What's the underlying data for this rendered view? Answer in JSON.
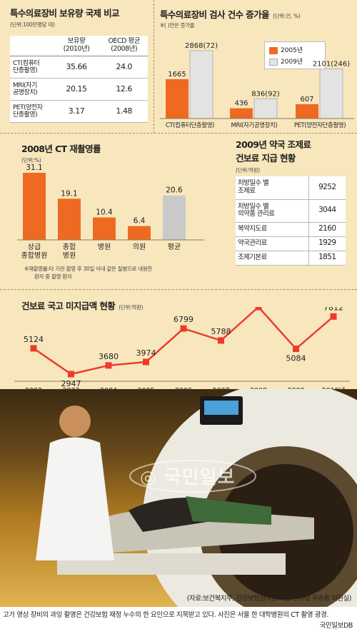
{
  "equipment_table": {
    "title": "특수의료장비 보유량 국제 비교",
    "unit": "(단위:100만명당 대)",
    "col_korea": [
      "보유량",
      "(2010년)"
    ],
    "col_oecd": [
      "OECD 평균",
      "(2008년)"
    ],
    "rows": [
      {
        "label": [
          "CT(컴퓨터",
          "단층촬영)"
        ],
        "korea": "35.66",
        "oecd": "24.0"
      },
      {
        "label": [
          "MRI(자기",
          "공명장치)"
        ],
        "korea": "20.15",
        "oecd": "12.6"
      },
      {
        "label": [
          "PET(양전자",
          "단층촬영)"
        ],
        "korea": "3.17",
        "oecd": "1.48"
      }
    ]
  },
  "exam_chart": {
    "title": "특수의료장비 검사 건수 증가율",
    "unit": "(단위:건, %)",
    "note": "※( )안은 증가율",
    "legend": [
      "2005년",
      "2009년"
    ],
    "colors": {
      "y2005": "#ee6a22",
      "y2009": "#e3e3e3"
    },
    "categories": [
      "CT(컴퓨터단층촬영)",
      "MRI(자기공명장치)",
      "PET(양전자단층촬영)"
    ],
    "series": [
      {
        "name": "2005년",
        "values": [
          1665,
          436,
          607
        ],
        "labels": [
          "1665",
          "436",
          "607"
        ]
      },
      {
        "name": "2009년",
        "values": [
          2868,
          836,
          2101
        ],
        "labels": [
          "2868(72)",
          "836(92)",
          "2101(246)"
        ]
      }
    ]
  },
  "ct_rate_chart": {
    "title": "2008년 CT 재촬영률",
    "unit": "(단위:%)",
    "note": [
      "※재촬영률:타 기관 촬영 후 30일 이내 같은 질병으로 내원한",
      "환자 중 촬영 환자"
    ],
    "categories": [
      [
        "상급",
        "종합병원"
      ],
      [
        "종합",
        "병원"
      ],
      [
        "병원"
      ],
      [
        "의원"
      ],
      [
        "평균"
      ]
    ],
    "values": [
      31.1,
      19.1,
      10.4,
      6.4,
      20.6
    ],
    "labels": [
      "31.1",
      "19.1",
      "10.4",
      "6.4",
      "20.6"
    ],
    "colors": [
      "#ee6a22",
      "#ee6a22",
      "#ee6a22",
      "#ee6a22",
      "#c9c9c9"
    ]
  },
  "pharmacy_table": {
    "title": [
      "2009년 약국 조제료",
      "건보료 지급 현황"
    ],
    "unit": "(단위:억원)",
    "rows": [
      {
        "label": [
          "처방일수 별",
          "조제료"
        ],
        "value": "9252"
      },
      {
        "label": [
          "처방일수 별",
          "의약품 관리료"
        ],
        "value": "3044"
      },
      {
        "label": [
          "복약지도료"
        ],
        "value": "2160"
      },
      {
        "label": [
          "약국관리료"
        ],
        "value": "1929"
      },
      {
        "label": [
          "조제기본료"
        ],
        "value": "1851"
      }
    ]
  },
  "subsidy_chart": {
    "title": "건보료 국고 미지급액 현황",
    "unit": "(단위:억원)",
    "x": [
      "2002",
      "2003",
      "2004",
      "2005",
      "2006",
      "2007",
      "2008",
      "2009",
      "2010년"
    ],
    "values": [
      5124,
      2947,
      3680,
      3974,
      6799,
      5788,
      8615,
      5084,
      7812
    ],
    "labels": [
      "5124",
      "2947",
      "3680",
      "3974",
      "6799",
      "5788",
      "8615",
      "5084",
      "7812"
    ],
    "line_color": "#ee3a2a"
  },
  "photo": {
    "watermark": "국민일보",
    "source": "(자료:보건복지부, 건강보험심사평가원, 민주당 주승용 의원실)"
  },
  "caption": {
    "text": "고가 영상 장비의 과잉 촬영은 건강보험 재정 누수의 한 요인으로 지목받고 있다. 사진은 서울 한 대학병원의 CT 촬영 광경.",
    "credit": "국민일보DB"
  }
}
